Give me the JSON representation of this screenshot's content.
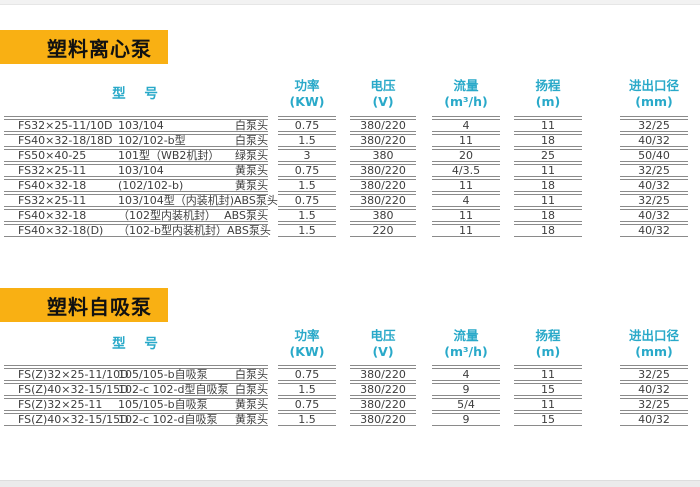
{
  "page": {
    "background": "#ffffff",
    "top_strip_color": "#f2f2f2",
    "bottom_strip_color": "#ebebeb"
  },
  "colors": {
    "accent_yellow": "#f9b013",
    "header_teal": "#29a9c9",
    "line_gray": "#8a8a8a",
    "row_text": "#3d3d3d",
    "title_text": "#111111"
  },
  "tables": [
    {
      "title": "塑料离心泵",
      "headers": {
        "model": "型 号",
        "power1": "功率",
        "power2": "(KW)",
        "voltage1": "电压",
        "voltage2": "(V)",
        "flow1": "流量",
        "flow2": "(m³/h)",
        "head1": "扬程",
        "head2": "(m)",
        "diameter1": "进出口径",
        "diameter2": "(mm)"
      },
      "rows": [
        {
          "code": "FS32×25-11/10D",
          "type": "103/104",
          "head_type": "白泵头",
          "power": "0.75",
          "voltage": "380/220",
          "flow": "4",
          "head": "11",
          "diameter": "32/25"
        },
        {
          "code": "FS40×32-18/18D",
          "type": "102/102-b型",
          "head_type": "白泵头",
          "power": "1.5",
          "voltage": "380/220",
          "flow": "11",
          "head": "18",
          "diameter": "40/32"
        },
        {
          "code": "FS50×40-25",
          "type": "101型（WB2机封）",
          "head_type": "绿泵头",
          "power": "3",
          "voltage": "380",
          "flow": "20",
          "head": "25",
          "diameter": "50/40"
        },
        {
          "code": "FS32×25-11",
          "type": "103/104",
          "head_type": "黄泵头",
          "power": "0.75",
          "voltage": "380/220",
          "flow": "4/3.5",
          "head": "11",
          "diameter": "32/25"
        },
        {
          "code": "FS40×32-18",
          "type": "(102/102-b)",
          "head_type": "黄泵头",
          "power": "1.5",
          "voltage": "380/220",
          "flow": "11",
          "head": "18",
          "diameter": "40/32"
        },
        {
          "code": "FS32×25-11",
          "type": "103/104型（内装机封)",
          "head_type": "ABS泵头",
          "power": "0.75",
          "voltage": "380/220",
          "flow": "4",
          "head": "11",
          "diameter": "32/25"
        },
        {
          "code": "FS40×32-18",
          "type": "（102型内装机封）",
          "head_type": "ABS泵头",
          "power": "1.5",
          "voltage": "380",
          "flow": "11",
          "head": "18",
          "diameter": "40/32"
        },
        {
          "code": "FS40×32-18(D)",
          "type": "（102-b型内装机封）",
          "head_type": "ABS泵头",
          "power": "1.5",
          "voltage": "220",
          "flow": "11",
          "head": "18",
          "diameter": "40/32"
        }
      ]
    },
    {
      "title": "塑料自吸泵",
      "headers": {
        "model": "型 号",
        "power1": "功率",
        "power2": "(KW)",
        "voltage1": "电压",
        "voltage2": "(V)",
        "flow1": "流量",
        "flow2": "(m³/h)",
        "head1": "扬程",
        "head2": "(m)",
        "diameter1": "进出口径",
        "diameter2": "(mm)"
      },
      "rows": [
        {
          "code": "FS(Z)32×25-11/10D",
          "type": "105/105-b自吸泵",
          "head_type": "白泵头",
          "power": "0.75",
          "voltage": "380/220",
          "flow": "4",
          "head": "11",
          "diameter": "32/25"
        },
        {
          "code": "FS(Z)40×32-15/15D",
          "type": "102-c 102-d型自吸泵",
          "head_type": "白泵头",
          "power": "1.5",
          "voltage": "380/220",
          "flow": "9",
          "head": "15",
          "diameter": "40/32"
        },
        {
          "code": "FS(Z)32×25-11",
          "type": "105/105-b自吸泵",
          "head_type": "黄泵头",
          "power": "0.75",
          "voltage": "380/220",
          "flow": "5/4",
          "head": "11",
          "diameter": "32/25"
        },
        {
          "code": "FS(Z)40×32-15/15D",
          "type": "102-c 102-d自吸泵",
          "head_type": "黄泵头",
          "power": "1.5",
          "voltage": "380/220",
          "flow": "9",
          "head": "15",
          "diameter": "40/32"
        }
      ]
    }
  ]
}
